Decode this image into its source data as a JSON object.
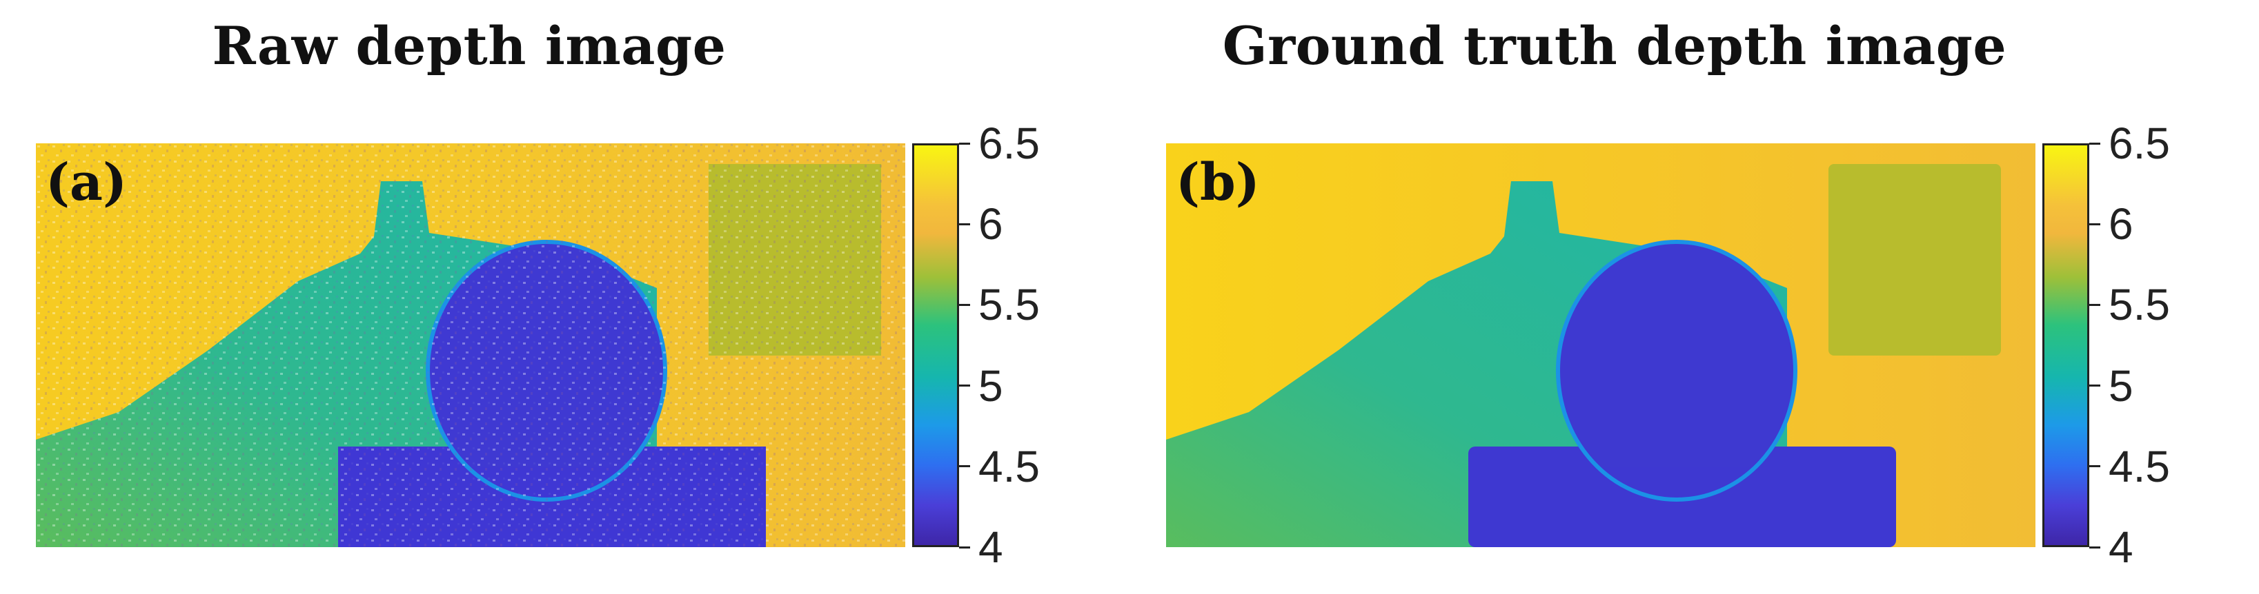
{
  "figure": {
    "panels": [
      {
        "id": "a",
        "title": "Raw depth image",
        "label": "(a)",
        "noisy": true
      },
      {
        "id": "b",
        "title": "Ground truth depth image",
        "label": "(b)",
        "noisy": false
      }
    ],
    "colorbar": {
      "min": 4,
      "max": 6.5,
      "ticks": [
        "6.5",
        "6",
        "5.5",
        "5",
        "4.5",
        "4"
      ]
    },
    "colors": {
      "background_high": "#f5c72a",
      "background_mid": "#f1bd35",
      "torso_arm": "#27b99e",
      "body_near": "#3f37d4",
      "board": "#b6bb2e",
      "edge_blue": "#1b92e6"
    }
  }
}
